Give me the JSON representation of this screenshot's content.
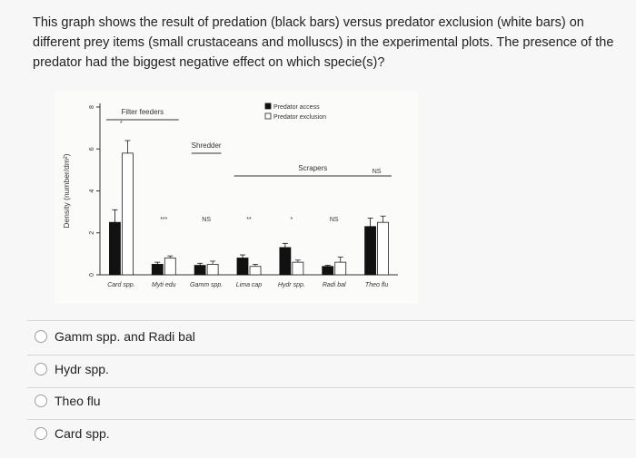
{
  "question": {
    "text": "This graph shows the result of predation (black bars) versus predator exclusion (white bars) on different prey items (small crustaceans and molluscs) in the experimental plots. The presence of the predator had the biggest negative effect on which specie(s)?"
  },
  "chart_data": {
    "type": "bar",
    "ylabel": "Density (number/dm²)",
    "ylim": [
      0,
      8
    ],
    "yticks": [
      "0",
      "2",
      "4",
      "6",
      "8"
    ],
    "categories": [
      "Card spp.",
      "Myti edu",
      "Gamm spp.",
      "Lima cap",
      "Hydr spp.",
      "Radi bal",
      "Theo flu"
    ],
    "series": [
      {
        "name": "Predator access",
        "color": "#111111",
        "values": [
          2.5,
          0.5,
          0.45,
          0.8,
          1.3,
          0.4,
          2.3
        ]
      },
      {
        "name": "Predator exclusion",
        "color": "#ffffff",
        "values": [
          5.8,
          0.8,
          0.5,
          0.4,
          0.6,
          0.6,
          2.5
        ]
      }
    ],
    "errors": {
      "Predator access": [
        0.6,
        0.1,
        0.1,
        0.15,
        0.2,
        0.05,
        0.4
      ],
      "Predator exclusion": [
        0.6,
        0.1,
        0.15,
        0.1,
        0.1,
        0.25,
        0.3
      ]
    },
    "significance": [
      "*",
      "***",
      "NS",
      "**",
      "*",
      "NS",
      "NS"
    ],
    "group_labels": [
      {
        "text": "Filter feeders",
        "from": 0,
        "to": 1
      },
      {
        "text": "Shredder",
        "from": 2,
        "to": 2
      },
      {
        "text": "Scrapers",
        "from": 3,
        "to": 6
      }
    ],
    "legend": [
      "Predator access",
      "Predator exclusion"
    ],
    "legend_position": "top-right",
    "grid": false
  },
  "options": [
    {
      "label": "Gamm spp. and Radi bal"
    },
    {
      "label": "Hydr spp."
    },
    {
      "label": "Theo flu"
    },
    {
      "label": "Card spp."
    }
  ]
}
